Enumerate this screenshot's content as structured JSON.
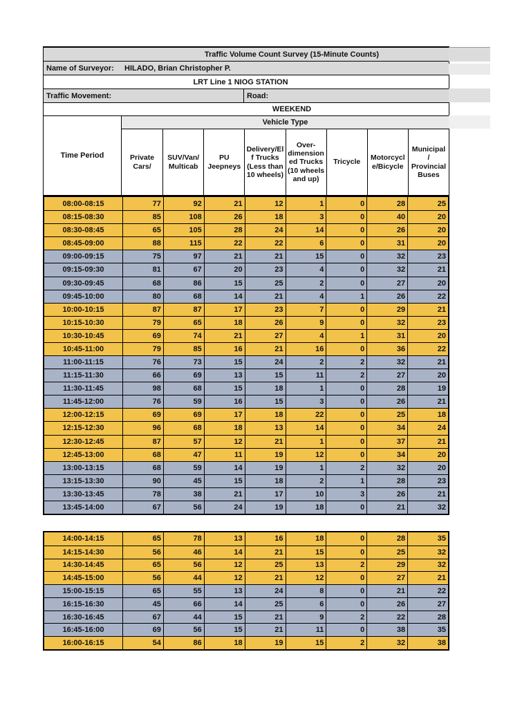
{
  "header": {
    "title": "Traffic Volume Count Survey (15-Minute Counts)",
    "surveyor_label": "Name of Surveyor:",
    "surveyor_name": "HILADO, Brian Christopher P.",
    "station": "LRT Line 1 NIOG STATION",
    "traffic_movement_label": "Traffic Movement:",
    "road_label": "Road:",
    "schedule": "WEEKEND",
    "vehicle_type_label": "Vehicle Type",
    "time_period_label": "Time Period"
  },
  "columns": [
    "Private\nCars/",
    "SUV/Van/\nMulticab",
    "PU\nJeepneys",
    "Delivery/El\nf Trucks\n(Less than\n10 wheels)",
    "Over-\ndimension\ned Trucks\n(10 wheels\nand up)",
    "Tricycle",
    "Motorcycl\ne/Bicycle",
    "Municipal\n/\nProvincial\nBuses"
  ],
  "theme": {
    "band_yellow": "#F2C24B",
    "band_blue": "#A9B3C7",
    "header_gray": "#D9D9D9",
    "band_header_light": "#E9E9E9"
  },
  "tables": [
    {
      "rows": [
        {
          "time": "08:00-08:15",
          "band": "yellow",
          "values": [
            77,
            92,
            21,
            12,
            1,
            0,
            28,
            25
          ]
        },
        {
          "time": "08:15-08:30",
          "band": "yellow",
          "values": [
            85,
            108,
            26,
            18,
            3,
            0,
            40,
            20
          ]
        },
        {
          "time": "08:30-08:45",
          "band": "yellow",
          "values": [
            65,
            105,
            28,
            24,
            14,
            0,
            26,
            20
          ]
        },
        {
          "time": "08:45-09:00",
          "band": "yellow",
          "values": [
            88,
            115,
            22,
            22,
            6,
            0,
            31,
            20
          ]
        },
        {
          "time": "09:00-09:15",
          "band": "blue",
          "values": [
            75,
            97,
            21,
            21,
            15,
            0,
            32,
            23
          ]
        },
        {
          "time": "09:15-09:30",
          "band": "blue",
          "values": [
            81,
            67,
            20,
            23,
            4,
            0,
            32,
            21
          ]
        },
        {
          "time": "09:30-09:45",
          "band": "blue",
          "values": [
            68,
            86,
            15,
            25,
            2,
            0,
            27,
            20
          ]
        },
        {
          "time": "09:45-10:00",
          "band": "blue",
          "values": [
            80,
            68,
            14,
            21,
            4,
            1,
            26,
            22
          ]
        },
        {
          "time": "10:00-10:15",
          "band": "yellow",
          "values": [
            87,
            87,
            17,
            23,
            7,
            0,
            29,
            21
          ]
        },
        {
          "time": "10:15-10:30",
          "band": "yellow",
          "values": [
            79,
            65,
            18,
            26,
            9,
            0,
            32,
            23
          ]
        },
        {
          "time": "10:30-10:45",
          "band": "yellow",
          "values": [
            69,
            74,
            21,
            27,
            4,
            1,
            31,
            20
          ]
        },
        {
          "time": "10:45-11:00",
          "band": "yellow",
          "values": [
            79,
            85,
            16,
            21,
            16,
            0,
            36,
            22
          ]
        },
        {
          "time": "11:00-11:15",
          "band": "blue",
          "values": [
            76,
            73,
            15,
            24,
            2,
            2,
            32,
            21
          ]
        },
        {
          "time": "11:15-11:30",
          "band": "blue",
          "values": [
            66,
            69,
            13,
            15,
            11,
            2,
            27,
            20
          ]
        },
        {
          "time": "11:30-11:45",
          "band": "blue",
          "values": [
            98,
            68,
            15,
            18,
            1,
            0,
            28,
            19
          ]
        },
        {
          "time": "11:45-12:00",
          "band": "blue",
          "values": [
            76,
            59,
            16,
            15,
            3,
            0,
            26,
            21
          ]
        },
        {
          "time": "12:00-12:15",
          "band": "yellow",
          "values": [
            69,
            69,
            17,
            18,
            22,
            0,
            25,
            18
          ]
        },
        {
          "time": "12:15-12:30",
          "band": "yellow",
          "values": [
            96,
            68,
            18,
            13,
            14,
            0,
            34,
            24
          ]
        },
        {
          "time": "12:30-12:45",
          "band": "yellow",
          "values": [
            87,
            57,
            12,
            21,
            1,
            0,
            37,
            21
          ]
        },
        {
          "time": "12:45-13:00",
          "band": "yellow",
          "values": [
            68,
            47,
            11,
            19,
            12,
            0,
            34,
            20
          ]
        },
        {
          "time": "13:00-13:15",
          "band": "blue",
          "values": [
            68,
            59,
            14,
            19,
            1,
            2,
            32,
            20
          ]
        },
        {
          "time": "13:15-13:30",
          "band": "blue",
          "values": [
            90,
            45,
            15,
            18,
            2,
            1,
            28,
            23
          ]
        },
        {
          "time": "13:30-13:45",
          "band": "blue",
          "values": [
            78,
            38,
            21,
            17,
            10,
            3,
            26,
            21
          ]
        },
        {
          "time": "13:45-14:00",
          "band": "blue",
          "values": [
            67,
            56,
            24,
            19,
            18,
            0,
            21,
            32
          ]
        }
      ]
    },
    {
      "rows": [
        {
          "time": "14:00-14:15",
          "band": "yellow",
          "values": [
            65,
            78,
            13,
            16,
            18,
            0,
            28,
            35
          ]
        },
        {
          "time": "14:15-14:30",
          "band": "yellow",
          "values": [
            56,
            46,
            14,
            21,
            15,
            0,
            25,
            32
          ]
        },
        {
          "time": "14:30-14:45",
          "band": "yellow",
          "values": [
            65,
            56,
            12,
            25,
            13,
            2,
            29,
            32
          ]
        },
        {
          "time": "14:45-15:00",
          "band": "yellow",
          "values": [
            56,
            44,
            12,
            21,
            12,
            0,
            27,
            21
          ]
        },
        {
          "time": "15:00-15:15",
          "band": "blue",
          "values": [
            65,
            55,
            13,
            24,
            8,
            0,
            21,
            22
          ]
        },
        {
          "time": "16:15-16:30",
          "band": "blue",
          "values": [
            45,
            66,
            14,
            25,
            6,
            0,
            26,
            27
          ]
        },
        {
          "time": "16:30-16:45",
          "band": "blue",
          "values": [
            67,
            44,
            15,
            21,
            9,
            2,
            22,
            28
          ]
        },
        {
          "time": "16:45-16:00",
          "band": "blue",
          "values": [
            69,
            56,
            15,
            21,
            11,
            0,
            38,
            35
          ]
        },
        {
          "time": "16:00-16:15",
          "band": "yellow",
          "values": [
            54,
            86,
            18,
            19,
            15,
            2,
            32,
            38
          ]
        }
      ]
    }
  ]
}
